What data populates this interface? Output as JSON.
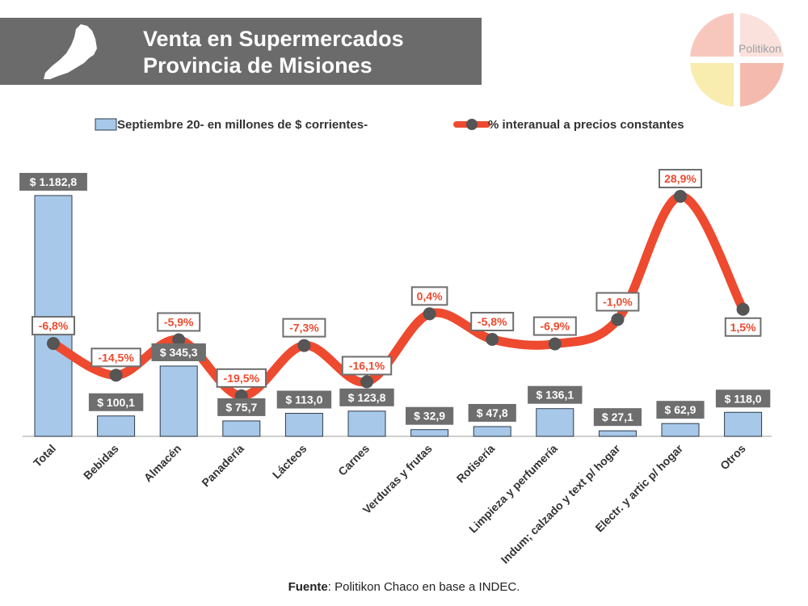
{
  "header": {
    "title_line1": "Venta en Supermercados",
    "title_line2": "Provincia de Misiones"
  },
  "logo": {
    "text": "Politikon",
    "icon": "politikon-logo-icon"
  },
  "source": {
    "label": "Fuente",
    "text": ": Politikon Chaco en base a INDEC."
  },
  "colors": {
    "bar": "#a7c8e8",
    "bar_stroke": "#2f3b4c",
    "line": "#ee4a2f",
    "marker": "#555555",
    "header": "#6b6b6b"
  },
  "chart_data": {
    "type": "bar",
    "categories": [
      "Total",
      "Bebidas",
      "Almacén",
      "Panadería",
      "Lácteos",
      "Carnes",
      "Verduras y frutas",
      "Rotisería",
      "Limpieza y perfumería",
      "Indum; calzado y text p/ hogar",
      "Electr. y artic p/ hogar",
      "Otros"
    ],
    "series": [
      {
        "name": "Septiembre 20- en millones de $ corrientes-",
        "type": "bar",
        "values": [
          1182.8,
          100.1,
          345.3,
          75.7,
          113.0,
          123.8,
          32.9,
          47.8,
          136.1,
          27.1,
          62.9,
          118.0
        ],
        "labels": [
          "$ 1.182,8",
          "$ 100,1",
          "$ 345,3",
          "$ 75,7",
          "$ 113,0",
          "$ 123,8",
          "$ 32,9",
          "$ 47,8",
          "$ 136,1",
          "$ 27,1",
          "$ 62,9",
          "$ 118,0"
        ]
      },
      {
        "name": "% interanual a precios constantes",
        "type": "line",
        "values": [
          -6.8,
          -14.5,
          -5.9,
          -19.5,
          -7.3,
          -16.1,
          0.4,
          -5.8,
          -6.9,
          -1.0,
          28.9,
          1.5
        ],
        "labels": [
          "-6,8%",
          "-14,5%",
          "-5,9%",
          "-19,5%",
          "-7,3%",
          "-16,1%",
          "0,4%",
          "-5,8%",
          "-6,9%",
          "-1,0%",
          "28,9%",
          "1,5%"
        ]
      }
    ],
    "legend": "top"
  }
}
